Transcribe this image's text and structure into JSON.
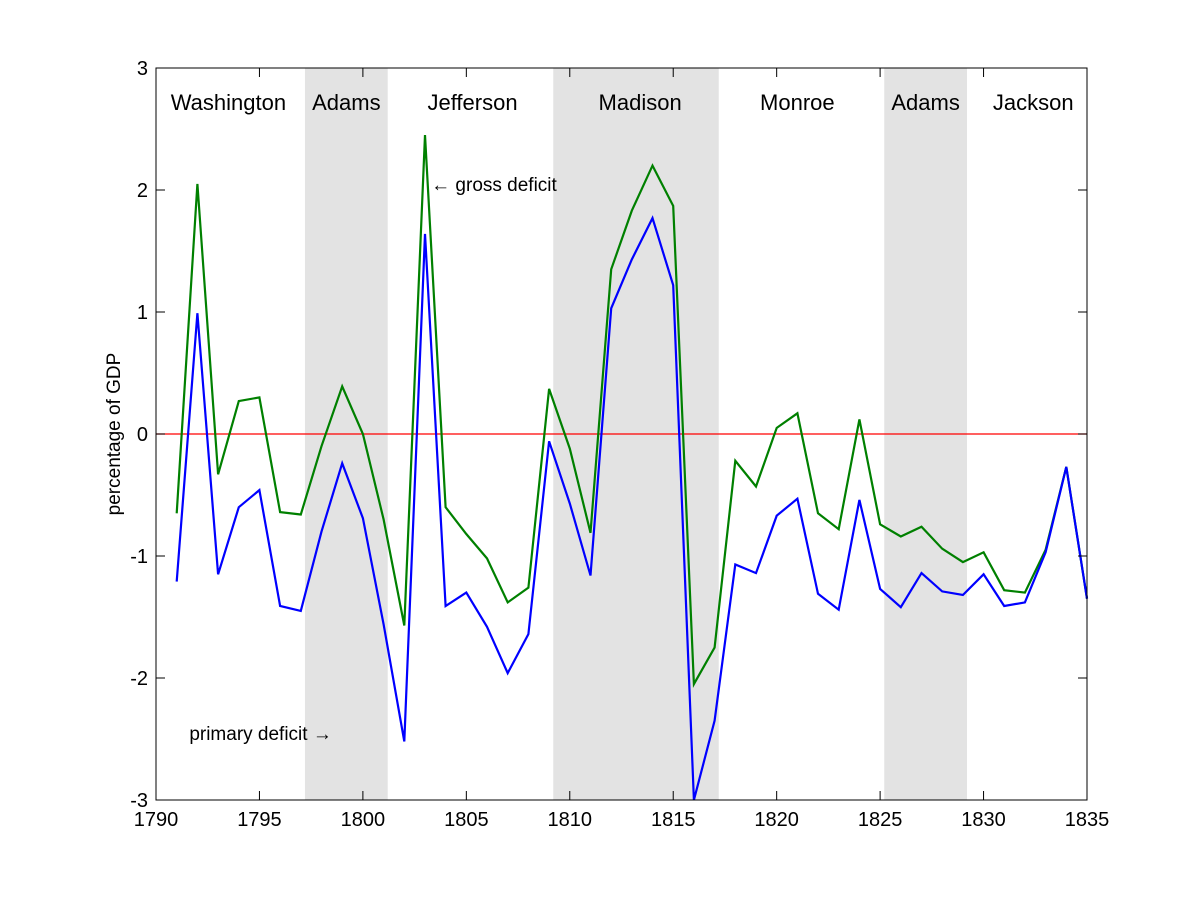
{
  "chart_data": {
    "type": "line",
    "title": "",
    "xlabel": "",
    "ylabel": "percentage of GDP",
    "xlim": [
      1790,
      1835
    ],
    "ylim": [
      -3,
      3
    ],
    "xticks": [
      1790,
      1795,
      1800,
      1805,
      1810,
      1815,
      1820,
      1825,
      1830,
      1835
    ],
    "yticks": [
      -3,
      -2,
      -1,
      0,
      1,
      2,
      3
    ],
    "grid": false,
    "reference_line": {
      "y": 0,
      "color": "#ff0000"
    },
    "x": [
      1791,
      1792,
      1793,
      1794,
      1795,
      1796,
      1797,
      1798,
      1799,
      1800,
      1801,
      1802,
      1803,
      1804,
      1805,
      1806,
      1807,
      1808,
      1809,
      1810,
      1811,
      1812,
      1813,
      1814,
      1815,
      1816,
      1817,
      1818,
      1819,
      1820,
      1821,
      1822,
      1823,
      1824,
      1825,
      1826,
      1827,
      1828,
      1829,
      1830,
      1831,
      1832,
      1833,
      1834,
      1835
    ],
    "series": [
      {
        "color": "#008000",
        "values": [
          -0.65,
          2.05,
          -0.33,
          0.27,
          0.3,
          -0.64,
          -0.66,
          -0.1,
          0.39,
          0.0,
          -0.7,
          -1.57,
          2.45,
          -0.6,
          -0.82,
          -1.02,
          -1.38,
          -1.26,
          0.37,
          -0.12,
          -0.81,
          1.35,
          1.83,
          2.2,
          1.87,
          -2.05,
          -1.75,
          -0.22,
          -0.43,
          0.05,
          0.17,
          -0.65,
          -0.78,
          0.12,
          -0.74,
          -0.84,
          -0.76,
          -0.94,
          -1.05,
          -0.97,
          -1.28,
          -1.3,
          -0.95,
          -0.27,
          -1.35
        ]
      },
      {
        "color": "#0000ff",
        "values": [
          -1.21,
          0.99,
          -1.15,
          -0.6,
          -0.46,
          -1.41,
          -1.45,
          -0.8,
          -0.24,
          -0.69,
          -1.56,
          -2.52,
          1.64,
          -1.41,
          -1.3,
          -1.58,
          -1.96,
          -1.64,
          -0.06,
          -0.57,
          -1.16,
          1.03,
          1.43,
          1.77,
          1.22,
          -3.0,
          -2.35,
          -1.07,
          -1.14,
          -0.67,
          -0.53,
          -1.31,
          -1.44,
          -0.54,
          -1.27,
          -1.42,
          -1.14,
          -1.29,
          -1.32,
          -1.15,
          -1.41,
          -1.38,
          -0.97,
          -0.27,
          -1.35
        ]
      }
    ],
    "annotations": [
      {
        "text": "← gross deficit",
        "x": 1803.3,
        "y": 2.05
      },
      {
        "text": "primary deficit →",
        "x": 1798.5,
        "y": -2.45
      }
    ],
    "presidencies": [
      {
        "name": "Washington",
        "start": 1790,
        "end": 1797.2,
        "shaded": false,
        "label_x": 1793.5
      },
      {
        "name": "Adams",
        "start": 1797.2,
        "end": 1801.2,
        "shaded": true,
        "label_x": 1799.2
      },
      {
        "name": "Jefferson",
        "start": 1801.2,
        "end": 1809.2,
        "shaded": false,
        "label_x": 1805.3
      },
      {
        "name": "Madison",
        "start": 1809.2,
        "end": 1817.2,
        "shaded": true,
        "label_x": 1813.4
      },
      {
        "name": "Monroe",
        "start": 1817.2,
        "end": 1825.2,
        "shaded": false,
        "label_x": 1821.0
      },
      {
        "name": "Adams",
        "start": 1825.2,
        "end": 1829.2,
        "shaded": true,
        "label_x": 1827.2
      },
      {
        "name": "Jackson",
        "start": 1829.2,
        "end": 1835,
        "shaded": false,
        "label_x": 1832.4
      }
    ],
    "shade_color": "#e3e3e3"
  }
}
